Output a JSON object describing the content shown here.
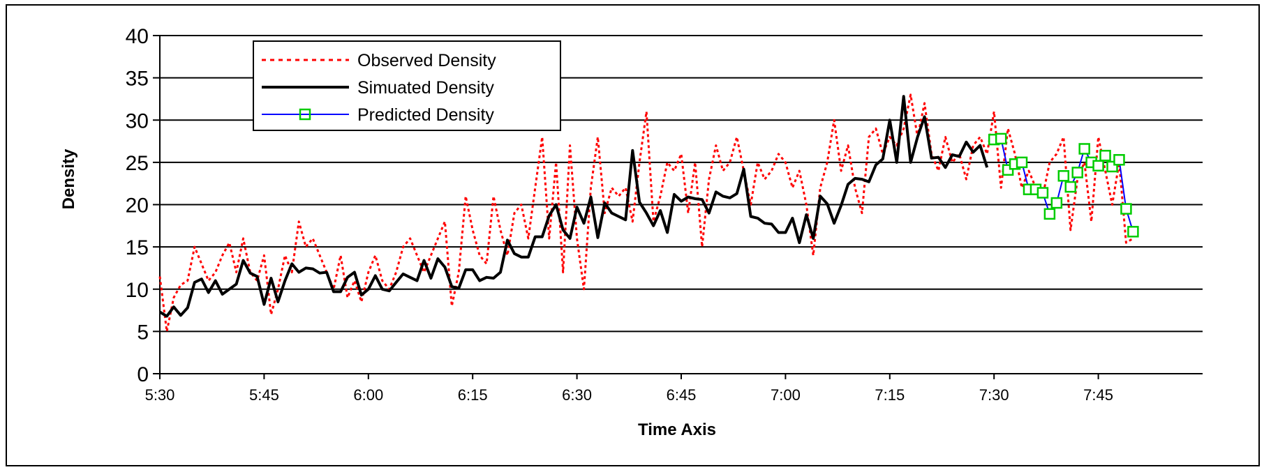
{
  "chart_data": {
    "type": "line",
    "xlabel": "Time Axis",
    "ylabel": "Density",
    "ylim": [
      0,
      40
    ],
    "yticks": [
      0,
      5,
      10,
      15,
      20,
      25,
      30,
      35,
      40
    ],
    "x_unit_minutes": true,
    "xlim_minutes": [
      330,
      480
    ],
    "xticks": [
      {
        "label": "5:30",
        "minutes": 330
      },
      {
        "label": "5:45",
        "minutes": 345
      },
      {
        "label": "6:00",
        "minutes": 360
      },
      {
        "label": "6:15",
        "minutes": 375
      },
      {
        "label": "6:30",
        "minutes": 390
      },
      {
        "label": "6:45",
        "minutes": 405
      },
      {
        "label": "7:00",
        "minutes": 420
      },
      {
        "label": "7:15",
        "minutes": 435
      },
      {
        "label": "7:30",
        "minutes": 450
      },
      {
        "label": "7:45",
        "minutes": 465
      }
    ],
    "grid": "horizontal",
    "legend_position": "top-left",
    "colors": {
      "observed": "#ff0000",
      "simulated": "#000000",
      "predicted": "#0000ff",
      "predicted_marker": "#00cc00"
    },
    "series": [
      {
        "name": "Observed Density",
        "style": "dotted",
        "points": [
          [
            330,
            11.5
          ],
          [
            331,
            5
          ],
          [
            332,
            9
          ],
          [
            333,
            10.5
          ],
          [
            334,
            11
          ],
          [
            335,
            15
          ],
          [
            336,
            13
          ],
          [
            337,
            11
          ],
          [
            338,
            12
          ],
          [
            339,
            14
          ],
          [
            340,
            15.5
          ],
          [
            341,
            12
          ],
          [
            342,
            16
          ],
          [
            343,
            12
          ],
          [
            344,
            11
          ],
          [
            345,
            14
          ],
          [
            346,
            7
          ],
          [
            347,
            10
          ],
          [
            348,
            14
          ],
          [
            349,
            12
          ],
          [
            350,
            18
          ],
          [
            351,
            15
          ],
          [
            352,
            16
          ],
          [
            353,
            14
          ],
          [
            354,
            12
          ],
          [
            355,
            10
          ],
          [
            356,
            14
          ],
          [
            357,
            9
          ],
          [
            358,
            11
          ],
          [
            359,
            8.5
          ],
          [
            360,
            12
          ],
          [
            361,
            14
          ],
          [
            362,
            11
          ],
          [
            363,
            10
          ],
          [
            364,
            12
          ],
          [
            365,
            15
          ],
          [
            366,
            16
          ],
          [
            367,
            14
          ],
          [
            368,
            12
          ],
          [
            369,
            14
          ],
          [
            370,
            16
          ],
          [
            371,
            18
          ],
          [
            372,
            8
          ],
          [
            373,
            12
          ],
          [
            374,
            21
          ],
          [
            375,
            17
          ],
          [
            376,
            14
          ],
          [
            377,
            13
          ],
          [
            378,
            21
          ],
          [
            379,
            17
          ],
          [
            380,
            14
          ],
          [
            381,
            19
          ],
          [
            382,
            20
          ],
          [
            383,
            16
          ],
          [
            384,
            22
          ],
          [
            385,
            28
          ],
          [
            386,
            16
          ],
          [
            387,
            25
          ],
          [
            388,
            12
          ],
          [
            389,
            27
          ],
          [
            390,
            16
          ],
          [
            391,
            10
          ],
          [
            392,
            22
          ],
          [
            393,
            28
          ],
          [
            394,
            19
          ],
          [
            395,
            22
          ],
          [
            396,
            21
          ],
          [
            397,
            22
          ],
          [
            398,
            18
          ],
          [
            399,
            25
          ],
          [
            400,
            31
          ],
          [
            401,
            18
          ],
          [
            402,
            21
          ],
          [
            403,
            25
          ],
          [
            404,
            24
          ],
          [
            405,
            26
          ],
          [
            406,
            19
          ],
          [
            407,
            25
          ],
          [
            408,
            15
          ],
          [
            409,
            23
          ],
          [
            410,
            27
          ],
          [
            411,
            24
          ],
          [
            412,
            25
          ],
          [
            413,
            28
          ],
          [
            414,
            24
          ],
          [
            415,
            20
          ],
          [
            416,
            25
          ],
          [
            417,
            23
          ],
          [
            418,
            24
          ],
          [
            419,
            26
          ],
          [
            420,
            25
          ],
          [
            421,
            22
          ],
          [
            422,
            24
          ],
          [
            423,
            20
          ],
          [
            424,
            14
          ],
          [
            425,
            22
          ],
          [
            426,
            25
          ],
          [
            427,
            30
          ],
          [
            428,
            24
          ],
          [
            429,
            27
          ],
          [
            430,
            22
          ],
          [
            431,
            19
          ],
          [
            432,
            28
          ],
          [
            433,
            29
          ],
          [
            434,
            26
          ],
          [
            435,
            28
          ],
          [
            436,
            27
          ],
          [
            437,
            29
          ],
          [
            438,
            33
          ],
          [
            439,
            28
          ],
          [
            440,
            32
          ],
          [
            441,
            26
          ],
          [
            442,
            24
          ],
          [
            443,
            28
          ],
          [
            444,
            25
          ],
          [
            445,
            26
          ],
          [
            446,
            23
          ],
          [
            447,
            27
          ],
          [
            448,
            28
          ],
          [
            449,
            26
          ],
          [
            450,
            31
          ],
          [
            451,
            22
          ],
          [
            452,
            29
          ],
          [
            453,
            26
          ],
          [
            454,
            22
          ],
          [
            455,
            24
          ],
          [
            456,
            22
          ],
          [
            457,
            21
          ],
          [
            458,
            25
          ],
          [
            459,
            26
          ],
          [
            460,
            28
          ],
          [
            461,
            17
          ],
          [
            462,
            23
          ],
          [
            463,
            25
          ],
          [
            464,
            18
          ],
          [
            465,
            28
          ],
          [
            466,
            24
          ],
          [
            467,
            20
          ],
          [
            468,
            25
          ],
          [
            469,
            15.5
          ],
          [
            470,
            16
          ]
        ]
      },
      {
        "name": "Simuated Density",
        "style": "solid",
        "points": [
          [
            330,
            7.3
          ],
          [
            331,
            6.8
          ],
          [
            332,
            7.9
          ],
          [
            333,
            6.9
          ],
          [
            334,
            7.8
          ],
          [
            335,
            10.8
          ],
          [
            336,
            11.2
          ],
          [
            337,
            9.6
          ],
          [
            338,
            11
          ],
          [
            339,
            9.4
          ],
          [
            340,
            10
          ],
          [
            341,
            10.6
          ],
          [
            342,
            13.4
          ],
          [
            343,
            11.9
          ],
          [
            344,
            11.5
          ],
          [
            345,
            8.2
          ],
          [
            346,
            11.3
          ],
          [
            347,
            8.5
          ],
          [
            348,
            11
          ],
          [
            349,
            13
          ],
          [
            350,
            12
          ],
          [
            351,
            12.5
          ],
          [
            352,
            12.4
          ],
          [
            353,
            11.9
          ],
          [
            354,
            12
          ],
          [
            355,
            9.7
          ],
          [
            356,
            9.7
          ],
          [
            357,
            11.4
          ],
          [
            358,
            12
          ],
          [
            359,
            9.3
          ],
          [
            360,
            10
          ],
          [
            361,
            11.6
          ],
          [
            362,
            10
          ],
          [
            363,
            9.8
          ],
          [
            364,
            10.8
          ],
          [
            365,
            11.8
          ],
          [
            366,
            11.4
          ],
          [
            367,
            11
          ],
          [
            368,
            13.4
          ],
          [
            369,
            11.3
          ],
          [
            370,
            13.6
          ],
          [
            371,
            12.6
          ],
          [
            372,
            10.3
          ],
          [
            373,
            10.1
          ],
          [
            374,
            12.3
          ],
          [
            375,
            12.3
          ],
          [
            376,
            11
          ],
          [
            377,
            11.4
          ],
          [
            378,
            11.3
          ],
          [
            379,
            12
          ],
          [
            380,
            15.8
          ],
          [
            381,
            14.2
          ],
          [
            382,
            13.8
          ],
          [
            383,
            13.8
          ],
          [
            384,
            16.2
          ],
          [
            385,
            16.2
          ],
          [
            386,
            18.7
          ],
          [
            387,
            20
          ],
          [
            388,
            17
          ],
          [
            389,
            16
          ],
          [
            390,
            19.7
          ],
          [
            391,
            17.8
          ],
          [
            392,
            20.9
          ],
          [
            393,
            16.1
          ],
          [
            394,
            20.2
          ],
          [
            395,
            19
          ],
          [
            396,
            18.6
          ],
          [
            397,
            18.2
          ],
          [
            398,
            26.4
          ],
          [
            399,
            20.3
          ],
          [
            400,
            19
          ],
          [
            401,
            17.5
          ],
          [
            402,
            19.3
          ],
          [
            403,
            16.7
          ],
          [
            404,
            21.2
          ],
          [
            405,
            20.4
          ],
          [
            406,
            20.9
          ],
          [
            407,
            20.7
          ],
          [
            408,
            20.6
          ],
          [
            409,
            19
          ],
          [
            410,
            21.5
          ],
          [
            411,
            21
          ],
          [
            412,
            20.8
          ],
          [
            413,
            21.3
          ],
          [
            414,
            24.2
          ],
          [
            415,
            18.6
          ],
          [
            416,
            18.4
          ],
          [
            417,
            17.8
          ],
          [
            418,
            17.7
          ],
          [
            419,
            16.7
          ],
          [
            420,
            16.7
          ],
          [
            421,
            18.4
          ],
          [
            422,
            15.5
          ],
          [
            423,
            18.8
          ],
          [
            424,
            16
          ],
          [
            425,
            21
          ],
          [
            426,
            20.1
          ],
          [
            427,
            17.8
          ],
          [
            428,
            19.9
          ],
          [
            429,
            22.4
          ],
          [
            430,
            23.1
          ],
          [
            431,
            23
          ],
          [
            432,
            22.7
          ],
          [
            433,
            24.7
          ],
          [
            434,
            25.4
          ],
          [
            435,
            30
          ],
          [
            436,
            25
          ],
          [
            437,
            32.8
          ],
          [
            438,
            25
          ],
          [
            439,
            28
          ],
          [
            440,
            30.4
          ],
          [
            441,
            25.5
          ],
          [
            442,
            25.6
          ],
          [
            443,
            24.4
          ],
          [
            444,
            25.9
          ],
          [
            445,
            25.7
          ],
          [
            446,
            27.4
          ],
          [
            447,
            26.2
          ],
          [
            448,
            27
          ],
          [
            449,
            24.4
          ]
        ]
      },
      {
        "name": "Predicted Density",
        "style": "solid-marker",
        "points": [
          [
            450,
            27.7
          ],
          [
            451,
            27.8
          ],
          [
            452,
            24.1
          ],
          [
            453,
            24.8
          ],
          [
            454,
            25
          ],
          [
            455,
            21.8
          ],
          [
            456,
            21.8
          ],
          [
            457,
            21.4
          ],
          [
            458,
            18.9
          ],
          [
            459,
            20.2
          ],
          [
            460,
            23.4
          ],
          [
            461,
            22.1
          ],
          [
            462,
            23.8
          ],
          [
            463,
            26.6
          ],
          [
            464,
            25
          ],
          [
            465,
            24.6
          ],
          [
            466,
            25.8
          ],
          [
            467,
            24.5
          ],
          [
            468,
            25.3
          ],
          [
            469,
            19.5
          ],
          [
            470,
            16.8
          ]
        ]
      }
    ]
  }
}
